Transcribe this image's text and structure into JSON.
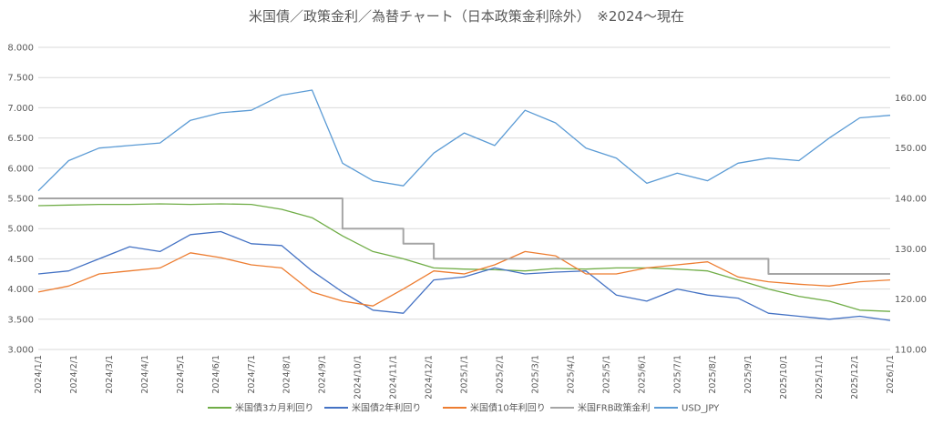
{
  "chart_data": {
    "type": "line",
    "title": "米国債／政策金利／為替チャート（日本政策金利除外）　※2024～現在",
    "y_left": {
      "min": 3.0,
      "max": 8.0,
      "step": 0.5,
      "ticks": [
        "3.000",
        "3.500",
        "4.000",
        "4.500",
        "5.000",
        "5.500",
        "6.000",
        "6.500",
        "7.000",
        "7.500",
        "8.000"
      ]
    },
    "y_right": {
      "min": 110,
      "max": 170,
      "step": 10,
      "ticks": [
        "110.00",
        "120.00",
        "130.00",
        "140.00",
        "150.00",
        "160.00"
      ]
    },
    "x_ticks": [
      "2024/1/1",
      "2024/2/1",
      "2024/3/1",
      "2024/4/1",
      "2024/5/1",
      "2024/6/1",
      "2024/7/1",
      "2024/8/1",
      "2024/9/1",
      "2024/10/1",
      "2024/11/1",
      "2024/12/1",
      "2025/1/1",
      "2025/2/1",
      "2025/3/1",
      "2025/4/1",
      "2025/5/1",
      "2025/6/1",
      "2025/7/1",
      "2025/8/1",
      "2025/9/1",
      "2025/10/1",
      "2025/11/1",
      "2025/12/1",
      "2026/1/1"
    ],
    "series": [
      {
        "name": "米国債3カ月利回り",
        "axis": "left",
        "color": "#70ad47",
        "values": [
          5.38,
          5.39,
          5.4,
          5.4,
          5.41,
          5.4,
          5.41,
          5.4,
          5.32,
          5.18,
          4.88,
          4.62,
          4.5,
          4.35,
          4.33,
          4.32,
          4.3,
          4.34,
          4.33,
          4.35,
          4.35,
          4.33,
          4.3,
          4.15,
          4.0,
          3.88,
          3.8,
          3.65,
          3.63
        ]
      },
      {
        "name": "米国債2年利回り",
        "axis": "left",
        "color": "#4472c4",
        "values": [
          4.25,
          4.3,
          4.5,
          4.7,
          4.62,
          4.9,
          4.95,
          4.75,
          4.72,
          4.3,
          3.95,
          3.65,
          3.6,
          4.15,
          4.2,
          4.35,
          4.25,
          4.28,
          4.3,
          3.9,
          3.8,
          4.0,
          3.9,
          3.85,
          3.6,
          3.55,
          3.5,
          3.55,
          3.48
        ]
      },
      {
        "name": "米国債10年利回り",
        "axis": "left",
        "color": "#ed7d31",
        "values": [
          3.95,
          4.05,
          4.25,
          4.3,
          4.35,
          4.6,
          4.52,
          4.4,
          4.35,
          3.95,
          3.8,
          3.72,
          4.0,
          4.3,
          4.25,
          4.4,
          4.62,
          4.55,
          4.25,
          4.25,
          4.35,
          4.4,
          4.45,
          4.2,
          4.12,
          4.08,
          4.05,
          4.12,
          4.15
        ]
      },
      {
        "name": "米国FRB政策金利",
        "axis": "left",
        "color": "#a5a5a5",
        "values": [
          5.5,
          5.5,
          5.5,
          5.5,
          5.5,
          5.5,
          5.5,
          5.5,
          5.5,
          5.5,
          5.0,
          5.0,
          4.75,
          4.5,
          4.5,
          4.5,
          4.5,
          4.5,
          4.5,
          4.5,
          4.5,
          4.5,
          4.5,
          4.5,
          4.25,
          4.25,
          4.25,
          4.25,
          4.25
        ]
      },
      {
        "name": "USD_JPY",
        "axis": "right",
        "color": "#5b9bd5",
        "values": [
          141.5,
          147.5,
          150.0,
          150.5,
          151.0,
          155.5,
          157.0,
          157.5,
          160.5,
          161.5,
          147.0,
          143.5,
          142.5,
          149.0,
          153.0,
          150.5,
          157.5,
          155.0,
          150.0,
          148.0,
          143.0,
          145.0,
          143.5,
          147.0,
          148.0,
          147.5,
          152.0,
          156.0,
          156.5
        ]
      }
    ]
  }
}
